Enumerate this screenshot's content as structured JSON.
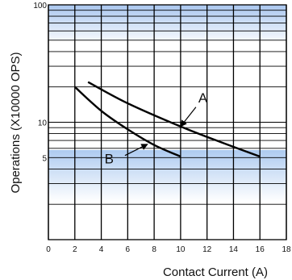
{
  "chart_data": {
    "type": "line",
    "title": "",
    "xlabel": "Contact Current (A)",
    "ylabel": "Operations (X10000 OPS)",
    "x_scale": "linear",
    "y_scale": "log",
    "xlim": [
      0,
      18
    ],
    "ylim": [
      1,
      100
    ],
    "x_ticks": [
      "0",
      "2",
      "4",
      "6",
      "8",
      "10",
      "12",
      "14",
      "16",
      "18"
    ],
    "y_ticks": [
      {
        "value": 100,
        "label": "100"
      },
      {
        "value": 10,
        "label": "10"
      },
      {
        "value": 5,
        "label": "5"
      }
    ],
    "grid": true,
    "series": [
      {
        "name": "A",
        "x": [
          3,
          6,
          10,
          13,
          16
        ],
        "y": [
          22,
          14.5,
          9.2,
          6.8,
          5.1
        ]
      },
      {
        "name": "B",
        "x": [
          2,
          4,
          6,
          8,
          10
        ],
        "y": [
          20,
          12.5,
          8.7,
          6.4,
          5.1
        ]
      }
    ],
    "annotations": [
      {
        "text": "A",
        "points_to": {
          "x": 10,
          "y": 9.2
        }
      },
      {
        "text": "B",
        "points_to": {
          "x": 7.5,
          "y": 6.5
        }
      }
    ],
    "colors": {
      "band": "#cfe0f5",
      "line": "#000000",
      "grid": "#000000"
    }
  }
}
